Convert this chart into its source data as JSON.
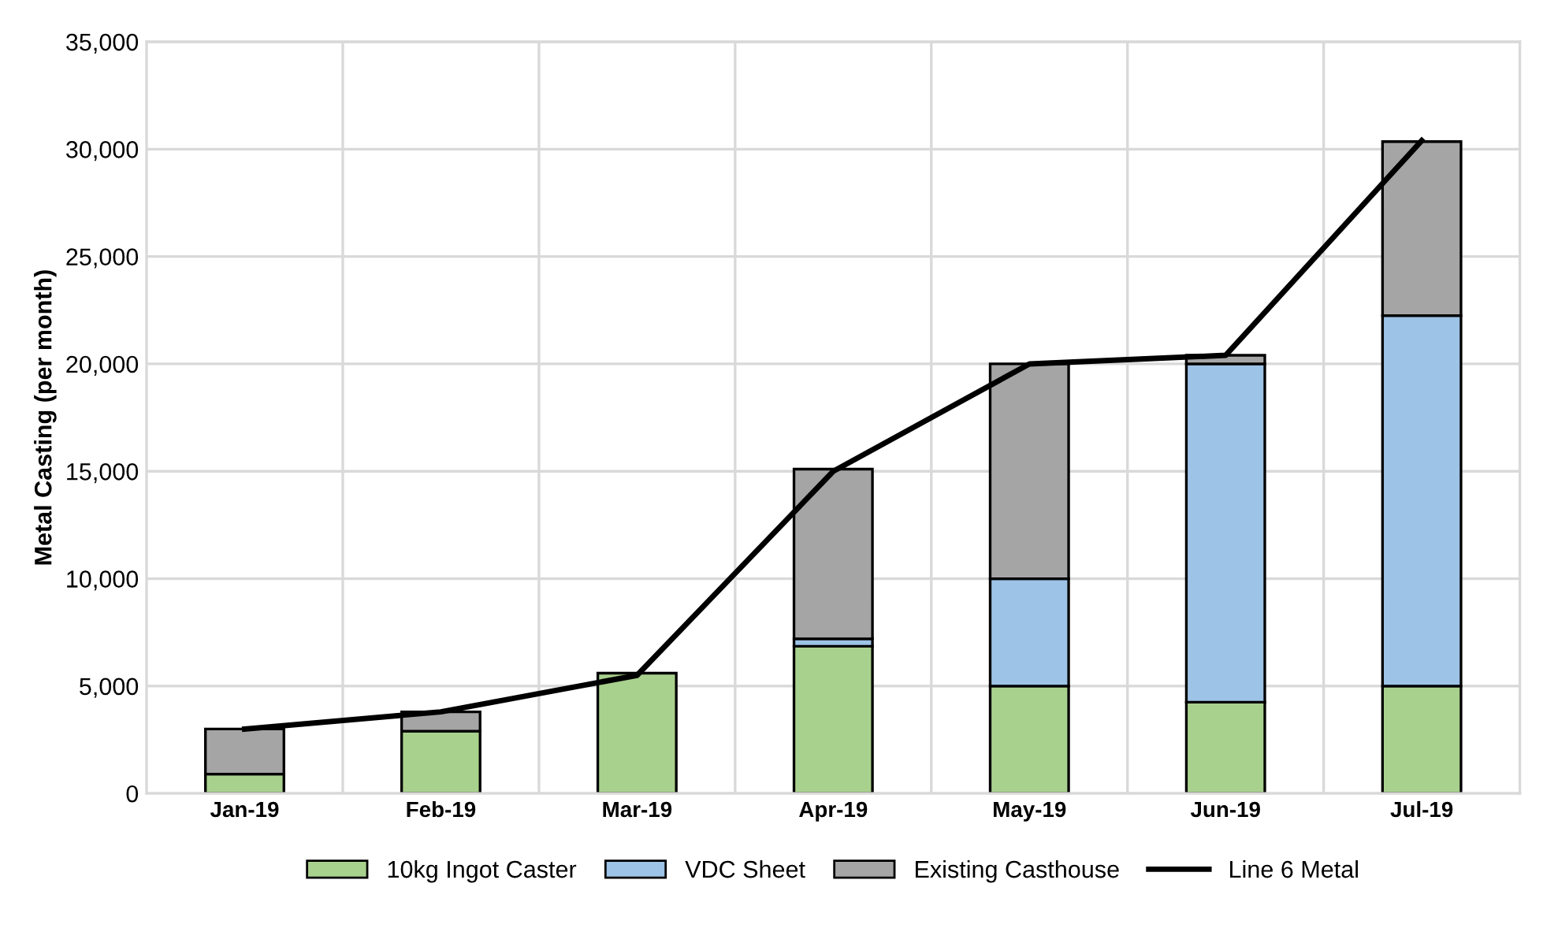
{
  "chart_data": {
    "type": "bar",
    "stacked": true,
    "ylabel": "Metal Casting (per month)",
    "categories": [
      "Jan-19",
      "Feb-19",
      "Mar-19",
      "Apr-19",
      "May-19",
      "Jun-19",
      "Jul-19"
    ],
    "series": [
      {
        "name": "10kg Ingot Caster",
        "color": "#a9d18e",
        "values": [
          900,
          2900,
          5600,
          6850,
          5000,
          4250,
          5000
        ]
      },
      {
        "name": "VDC Sheet",
        "color": "#9dc3e6",
        "values": [
          null,
          null,
          null,
          350,
          5000,
          15750,
          17250
        ]
      },
      {
        "name": "Existing Casthouse",
        "color": "#a5a5a5",
        "values": [
          2100,
          900,
          null,
          7900,
          10000,
          400,
          8100
        ]
      },
      {
        "name": "Line 6 Metal",
        "type": "line",
        "color": "#000000",
        "values": [
          3000,
          3800,
          5500,
          15000,
          20000,
          20400,
          30400
        ]
      }
    ],
    "ylim": [
      0,
      35000
    ],
    "yticks": [
      {
        "value": 0,
        "label": "0"
      },
      {
        "value": 5000,
        "label": "5,000"
      },
      {
        "value": 10000,
        "label": "10,000"
      },
      {
        "value": 15000,
        "label": "15,000"
      },
      {
        "value": 20000,
        "label": "20,000"
      },
      {
        "value": 25000,
        "label": "25,000"
      },
      {
        "value": 30000,
        "label": "30,000"
      },
      {
        "value": 35000,
        "label": "35,000"
      }
    ],
    "grid": true,
    "legend": "bottom"
  }
}
